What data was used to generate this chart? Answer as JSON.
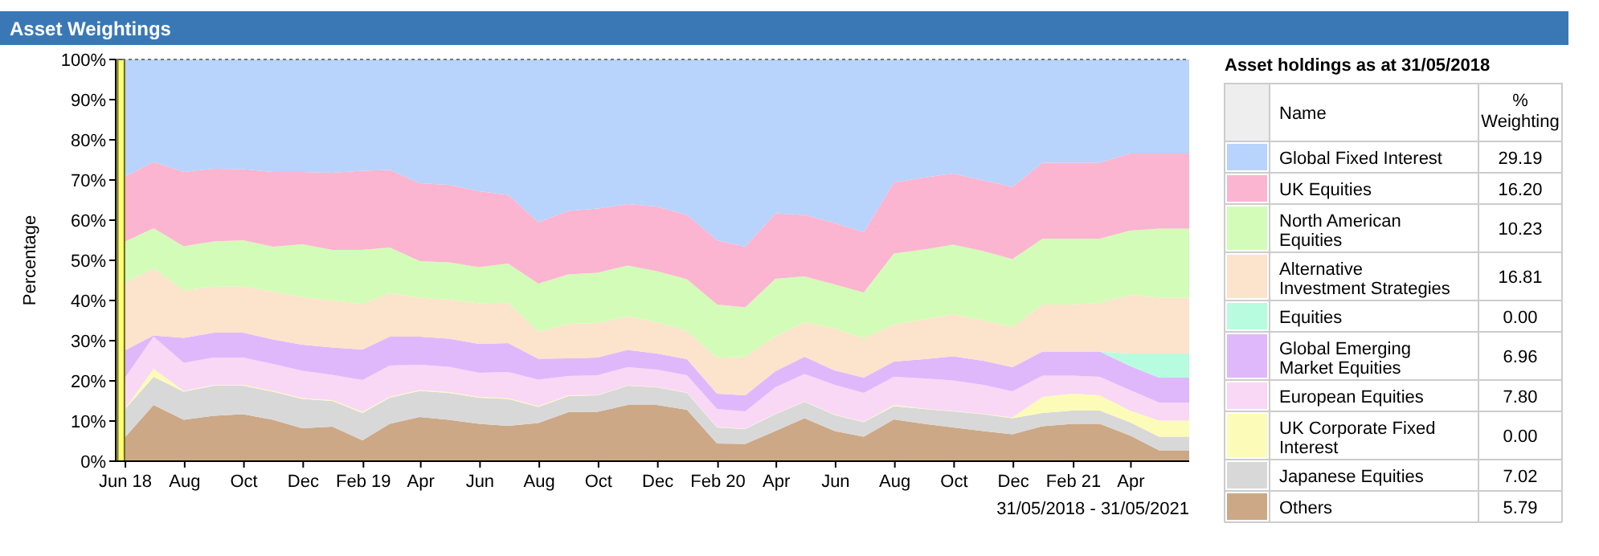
{
  "chart_data": [
    {
      "type": "area",
      "stacked": true,
      "title": "Asset Weightings",
      "ylabel": "Percentage",
      "annotations": [
        "31/05/2018 - 31/05/2021"
      ],
      "x": [
        "2018-05-31",
        "2018-06-30",
        "2018-07-31",
        "2018-08-31",
        "2018-09-30",
        "2018-10-31",
        "2018-11-30",
        "2018-12-31",
        "2019-01-31",
        "2019-02-28",
        "2019-03-31",
        "2019-04-30",
        "2019-05-31",
        "2019-06-30",
        "2019-07-31",
        "2019-08-31",
        "2019-09-30",
        "2019-10-31",
        "2019-11-30",
        "2019-12-31",
        "2020-01-31",
        "2020-02-29",
        "2020-03-31",
        "2020-04-30",
        "2020-05-31",
        "2020-06-30",
        "2020-07-31",
        "2020-08-31",
        "2020-09-30",
        "2020-10-31",
        "2020-11-30",
        "2020-12-31",
        "2021-01-31",
        "2021-02-28",
        "2021-03-31",
        "2021-04-30",
        "2021-05-31"
      ],
      "xlim": [
        "2018-05-22",
        "2021-05-31"
      ],
      "xticks": [
        {
          "value": "2018-06-01",
          "label": "Jun 18"
        },
        {
          "value": "2018-08-01",
          "label": "Aug"
        },
        {
          "value": "2018-10-01",
          "label": "Oct"
        },
        {
          "value": "2018-12-01",
          "label": "Dec"
        },
        {
          "value": "2019-02-01",
          "label": "Feb 19"
        },
        {
          "value": "2019-04-01",
          "label": "Apr"
        },
        {
          "value": "2019-06-01",
          "label": "Jun"
        },
        {
          "value": "2019-08-01",
          "label": "Aug"
        },
        {
          "value": "2019-10-01",
          "label": "Oct"
        },
        {
          "value": "2019-12-01",
          "label": "Dec"
        },
        {
          "value": "2020-02-01",
          "label": "Feb 20"
        },
        {
          "value": "2020-04-01",
          "label": "Apr"
        },
        {
          "value": "2020-06-01",
          "label": "Jun"
        },
        {
          "value": "2020-08-01",
          "label": "Aug"
        },
        {
          "value": "2020-10-01",
          "label": "Oct"
        },
        {
          "value": "2020-12-01",
          "label": "Dec"
        },
        {
          "value": "2021-02-01",
          "label": "Feb 21"
        },
        {
          "value": "2021-04-01",
          "label": "Apr"
        }
      ],
      "ylim": [
        0,
        100
      ],
      "yticks": [
        {
          "value": 0,
          "label": "0%"
        },
        {
          "value": 10,
          "label": "10%"
        },
        {
          "value": 20,
          "label": "20%"
        },
        {
          "value": 30,
          "label": "30%"
        },
        {
          "value": 40,
          "label": "40%"
        },
        {
          "value": 50,
          "label": "50%"
        },
        {
          "value": 60,
          "label": "60%"
        },
        {
          "value": 70,
          "label": "70%"
        },
        {
          "value": 80,
          "label": "80%"
        },
        {
          "value": 90,
          "label": "90%"
        },
        {
          "value": 100,
          "label": "100%"
        }
      ],
      "bands": [
        {
          "axis": "x",
          "from": "2018-05-24",
          "to": "2018-05-31",
          "color": "#ffff44"
        }
      ],
      "series": [
        {
          "color": "#cca886",
          "values": [
            5.79,
            14,
            10.3,
            11.3,
            11.7,
            10.3,
            8.2,
            8.6,
            5.2,
            9.3,
            11,
            10.3,
            9.3,
            8.8,
            9.5,
            12.2,
            12.3,
            14,
            14,
            12.8,
            4.4,
            4.3,
            7.5,
            10.7,
            7.5,
            6.1,
            10.4,
            9.3,
            8.4,
            7.5,
            6.7,
            8.7,
            9.3,
            9.3,
            6.4,
            2.7,
            2.7
          ]
        },
        {
          "color": "#d8d8d8",
          "values": [
            7.02,
            7,
            7,
            7.5,
            7.1,
            7,
            7.3,
            6.4,
            6.8,
            6.5,
            6.5,
            6.7,
            6.5,
            6.7,
            4,
            4,
            4.1,
            4.8,
            4.4,
            4.2,
            4,
            3.7,
            4.2,
            4.1,
            4,
            3.6,
            3.3,
            3.7,
            4,
            4.2,
            4,
            3.3,
            3.3,
            3.3,
            3.3,
            3.4,
            3.4
          ]
        },
        {
          "color": "#fcfcb8",
          "values": [
            0,
            2,
            0.2,
            0.2,
            0.2,
            0.2,
            0.2,
            0.2,
            0.3,
            0.2,
            0.2,
            0.2,
            0.2,
            0.2,
            0.2,
            0.2,
            0.1,
            0.1,
            0.1,
            0.1,
            0.1,
            0.1,
            0.1,
            0.1,
            0.1,
            0.1,
            0.3,
            0.1,
            0.1,
            0.1,
            0.2,
            4,
            4.2,
            3.8,
            2.9,
            4,
            4
          ]
        },
        {
          "color": "#f8d8f5",
          "values": [
            7.8,
            8,
            7,
            6.8,
            6.8,
            6.7,
            6.8,
            6.3,
            7.9,
            7.8,
            6.3,
            6.3,
            6,
            6.5,
            6.6,
            4.8,
            4.9,
            4.5,
            4.3,
            4.3,
            4.5,
            4.3,
            6.6,
            6.8,
            7.4,
            7.2,
            7,
            7.5,
            7.6,
            7.2,
            6.5,
            5.3,
            4.5,
            4.6,
            5.1,
            4.5,
            4.5
          ]
        },
        {
          "color": "#dfb8fc",
          "values": [
            6.96,
            0.3,
            6.2,
            6.2,
            6.2,
            6.1,
            6.5,
            6.8,
            7.6,
            7.2,
            7,
            7,
            7.2,
            7.2,
            5.2,
            4.4,
            4.4,
            4.3,
            4,
            4,
            3.8,
            4,
            4,
            4.3,
            3.6,
            3.8,
            3.8,
            4.8,
            6,
            6,
            6,
            6,
            6,
            6.3,
            6,
            6.2,
            6.2
          ]
        },
        {
          "color": "#b8fce0",
          "values": [
            0,
            0,
            0,
            0,
            0,
            0,
            0,
            0,
            0,
            0,
            0,
            0,
            0,
            0,
            0,
            0,
            0,
            0,
            0,
            0,
            0,
            0,
            0,
            0,
            0,
            0,
            0,
            0,
            0,
            0,
            0,
            0,
            0,
            0,
            3.1,
            6,
            6
          ]
        },
        {
          "color": "#fce3cc",
          "values": [
            16.81,
            16.7,
            11.8,
            11.5,
            11.5,
            11.9,
            11.8,
            11.7,
            11.4,
            10.8,
            9.7,
            9.7,
            10.1,
            10.1,
            6.7,
            8.6,
            8.6,
            8.3,
            7.8,
            7,
            8.9,
            9.6,
            8.6,
            8.6,
            10.4,
            9.8,
            9.2,
            9.9,
            10.5,
            10,
            10,
            11.7,
            11.7,
            12.1,
            14.6,
            13.9,
            13.9
          ]
        },
        {
          "color": "#d3fcb8",
          "values": [
            10.23,
            10,
            11,
            11.2,
            11.5,
            11.2,
            13.2,
            12.6,
            13.4,
            11.4,
            9.1,
            9.3,
            9,
            9.7,
            12,
            12.3,
            12.5,
            12.7,
            12.7,
            12.9,
            13.3,
            12.3,
            14.4,
            11.4,
            11,
            11.4,
            17.7,
            17.4,
            17.3,
            17.3,
            16.9,
            16.4,
            16.4,
            16,
            16,
            17.2,
            17.2
          ]
        },
        {
          "color": "#fbb5d0",
          "values": [
            16.2,
            16.5,
            18.5,
            18.1,
            17.7,
            18.6,
            18,
            19.2,
            19.7,
            19.3,
            19.4,
            19.3,
            18.9,
            17.1,
            15.3,
            15.8,
            16,
            15.3,
            16.1,
            16,
            16,
            15.1,
            16.3,
            15.3,
            15.3,
            15,
            17.7,
            17.9,
            17.7,
            17.6,
            18,
            18.9,
            18.9,
            18.9,
            19.2,
            18.7,
            18.7
          ]
        },
        {
          "color": "#b8d3fc",
          "values": [
            29.19,
            25.5,
            28,
            27.2,
            27.3,
            28,
            28,
            28.2,
            27.7,
            27.5,
            30.8,
            31.2,
            32.8,
            33.7,
            40.5,
            37.7,
            37.1,
            36,
            36.6,
            38.7,
            45,
            46.6,
            38.3,
            38.7,
            40.7,
            43,
            30.6,
            29.4,
            28.4,
            30.1,
            31.7,
            25.7,
            25.7,
            25.7,
            23.4,
            23.4,
            23.4
          ]
        }
      ]
    },
    {
      "type": "other",
      "title": "Asset holdings as at 31/05/2018",
      "annotations": [
        "Name",
        "% Weighting"
      ],
      "categories": [
        "Global Fixed Interest",
        "UK Equities",
        "North American Equities",
        "Alternative Investment Strategies",
        "Equities",
        "Global Emerging Market Equities",
        "European Equities",
        "UK Corporate Fixed Interest",
        "Japanese Equities",
        "Others"
      ],
      "value_labels": [
        "29.19",
        "16.20",
        "10.23",
        "16.81",
        "0.00",
        "6.96",
        "7.80",
        "0.00",
        "7.02",
        "5.79"
      ],
      "colors": [
        "#b8d3fc",
        "#fbb5d0",
        "#d3fcb8",
        "#fce3cc",
        "#b8fce0",
        "#dfb8fc",
        "#f8d8f5",
        "#fcfcb8",
        "#d8d8d8",
        "#cca886"
      ]
    }
  ]
}
